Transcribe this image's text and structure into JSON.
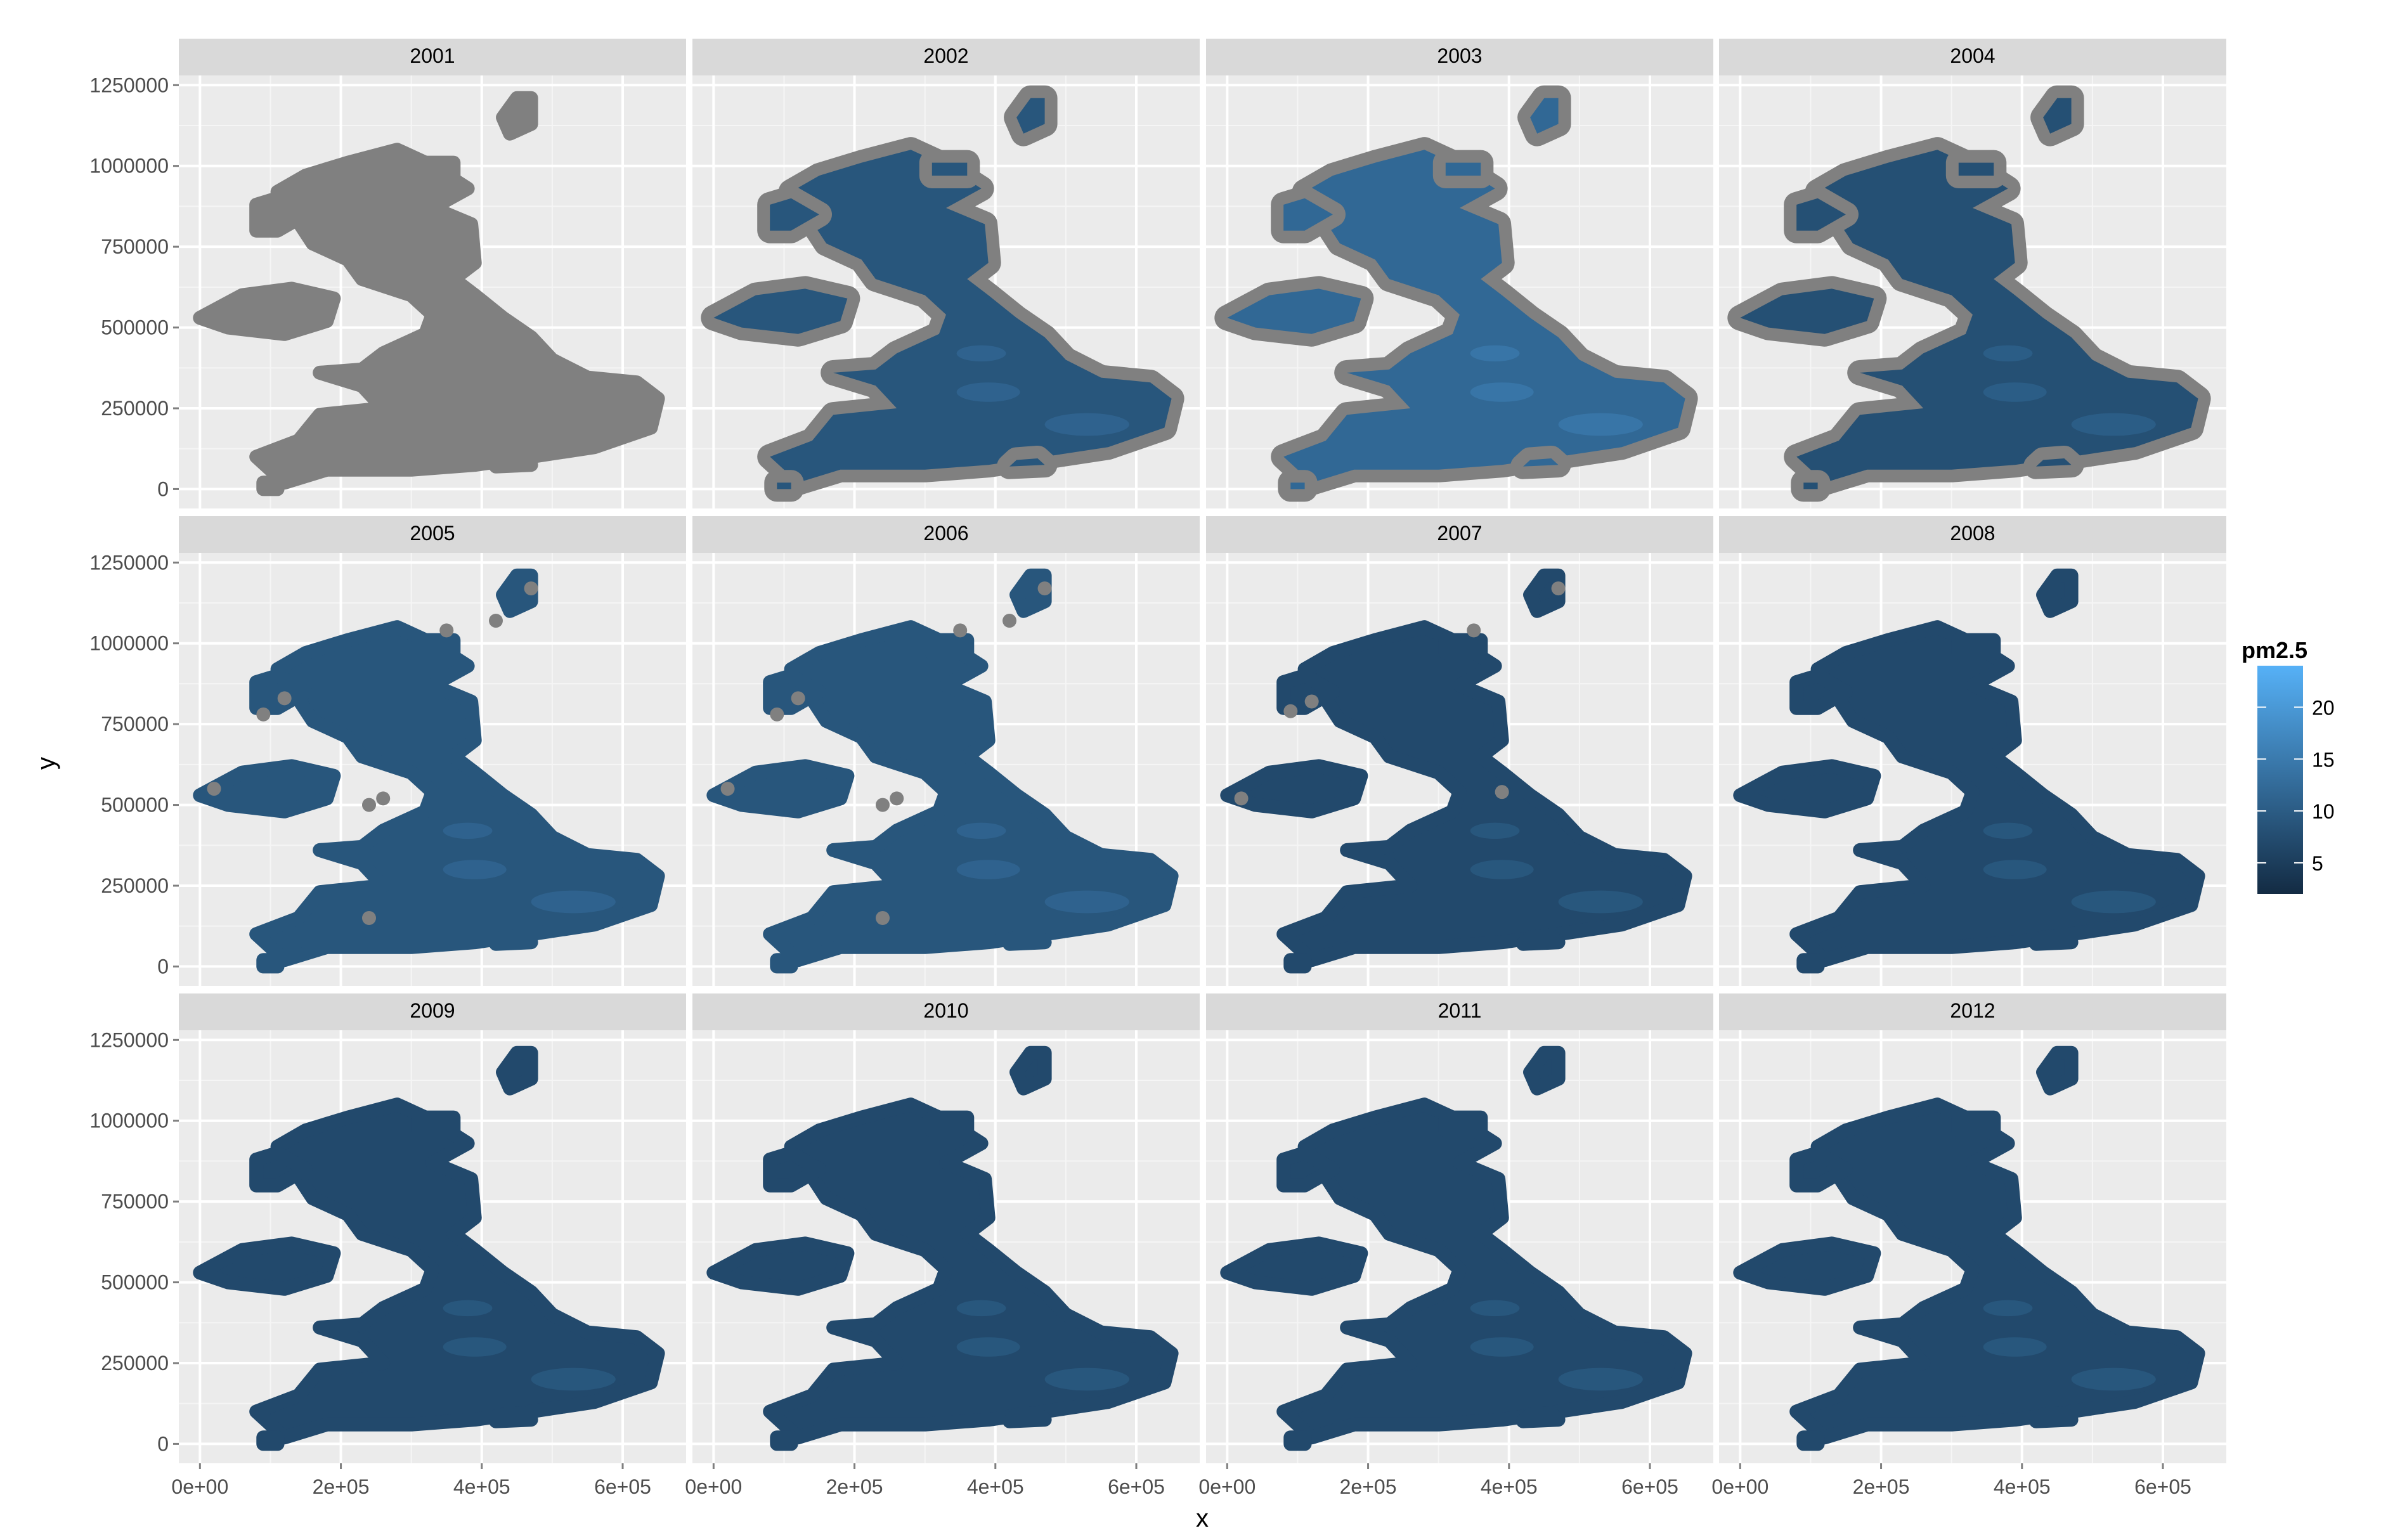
{
  "chart_data": {
    "type": "heatmap",
    "title": "",
    "xlabel": "x",
    "ylabel": "y",
    "facet_variable": "year",
    "facets": [
      "2001",
      "2002",
      "2003",
      "2004",
      "2005",
      "2006",
      "2007",
      "2008",
      "2009",
      "2010",
      "2011",
      "2012"
    ],
    "facet_layout": {
      "rows": 3,
      "cols": 4
    },
    "xlim": [
      -30000,
      690000
    ],
    "ylim": [
      -60000,
      1280000
    ],
    "x_ticks": [
      0,
      200000,
      400000,
      600000
    ],
    "x_tick_labels": [
      "0e+00",
      "2e+05",
      "4e+05",
      "6e+05"
    ],
    "y_ticks": [
      0,
      250000,
      500000,
      750000,
      1000000,
      1250000
    ],
    "y_tick_labels": [
      "0",
      "250000",
      "500000",
      "750000",
      "1000000",
      "1250000"
    ],
    "grid": true,
    "legend": {
      "title": "pm2.5",
      "position": "right",
      "range": [
        2,
        24
      ],
      "breaks": [
        5,
        10,
        15,
        20
      ],
      "break_labels": [
        "5",
        "10",
        "15",
        "20"
      ],
      "low_color": "#132B43",
      "high_color": "#56B1F7"
    },
    "na_color": "#808080",
    "facet_missing_coverage": {
      "2001": "all",
      "2002": "coastal",
      "2003": "coastal",
      "2004": "coastal",
      "2005": "sparse",
      "2006": "sparse",
      "2007": "few",
      "2008": "none",
      "2009": "none",
      "2010": "none",
      "2011": "none",
      "2012": "none"
    },
    "facet_mean_pm25": {
      "2001": null,
      "2002": 9,
      "2003": 12,
      "2004": 8,
      "2005": 9,
      "2006": 9,
      "2007": 7,
      "2008": 7,
      "2009": 7,
      "2010": 7,
      "2011": 7,
      "2012": 7
    }
  },
  "colors": {
    "panel_background": "#EBEBEB",
    "grid_major": "#FFFFFF",
    "grid_minor": "#F5F5F5",
    "strip_background": "#D9D9D9",
    "axis_text": "#4D4D4D",
    "title_text": "#000000"
  }
}
